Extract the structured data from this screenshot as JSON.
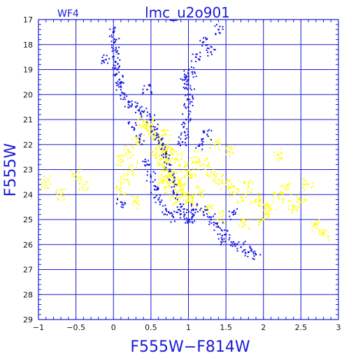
{
  "chart_data": {
    "type": "scatter",
    "title": "lmc_u2o901",
    "subtitle": "WF4",
    "xlabel": "F555W−F814W",
    "ylabel": "F555W",
    "xlim": [
      -1,
      3
    ],
    "ylim": [
      29,
      17
    ],
    "y_inverted": true,
    "grid": true,
    "x_ticks": [
      "−1",
      "−0.5",
      "0",
      "0.5",
      "1",
      "1.5",
      "2",
      "2.5",
      "3"
    ],
    "y_ticks": [
      "17",
      "18",
      "19",
      "20",
      "21",
      "22",
      "23",
      "24",
      "25",
      "26",
      "27",
      "28",
      "29"
    ],
    "colors": {
      "axis": "#1a1ad6",
      "series_blue": "#1010e0",
      "series_yellow": "#ffff00"
    },
    "series": [
      {
        "color": "#ffff00",
        "description_points": [
          [
            0.7,
            22.4
          ],
          [
            0.72,
            22.7
          ],
          [
            0.68,
            22.9
          ],
          [
            0.75,
            23.1
          ],
          [
            0.8,
            23.3
          ],
          [
            0.78,
            22.2
          ],
          [
            0.65,
            22.1
          ],
          [
            0.85,
            23.6
          ],
          [
            0.9,
            23.8
          ],
          [
            0.95,
            24.0
          ],
          [
            1.0,
            24.1
          ],
          [
            1.05,
            24.3
          ],
          [
            0.6,
            21.9
          ],
          [
            0.62,
            22.6
          ],
          [
            0.58,
            22.3
          ],
          [
            0.66,
            23.4
          ],
          [
            0.73,
            23.7
          ],
          [
            0.82,
            24.2
          ],
          [
            0.88,
            23.5
          ],
          [
            0.7,
            21.6
          ],
          [
            0.55,
            21.5
          ],
          [
            0.5,
            21.2
          ],
          [
            0.45,
            21.4
          ],
          [
            0.4,
            21.1
          ],
          [
            0.3,
            21.9
          ],
          [
            0.2,
            22.3
          ],
          [
            0.1,
            22.6
          ],
          [
            0.25,
            23.0
          ],
          [
            0.15,
            23.4
          ],
          [
            1.1,
            22.5
          ],
          [
            1.2,
            22.8
          ],
          [
            1.3,
            23.1
          ],
          [
            1.4,
            23.4
          ],
          [
            1.5,
            23.6
          ],
          [
            1.6,
            23.9
          ],
          [
            1.7,
            24.1
          ],
          [
            1.8,
            23.7
          ],
          [
            1.9,
            24.2
          ],
          [
            2.0,
            24.4
          ],
          [
            2.1,
            24.6
          ],
          [
            2.2,
            24.1
          ],
          [
            2.3,
            23.8
          ],
          [
            2.4,
            24.5
          ],
          [
            2.5,
            24.3
          ],
          [
            2.7,
            25.2
          ],
          [
            2.8,
            25.6
          ],
          [
            1.25,
            24.6
          ],
          [
            1.45,
            24.9
          ],
          [
            1.55,
            22.3
          ],
          [
            1.35,
            22.0
          ],
          [
            1.15,
            23.9
          ],
          [
            0.95,
            22.9
          ],
          [
            1.05,
            23.2
          ],
          [
            0.85,
            22.6
          ],
          [
            -0.4,
            23.6
          ],
          [
            -0.9,
            23.5
          ],
          [
            -0.7,
            24.0
          ],
          [
            -0.5,
            23.2
          ],
          [
            0.3,
            24.3
          ],
          [
            0.1,
            23.9
          ],
          [
            2.2,
            22.4
          ],
          [
            2.6,
            23.6
          ],
          [
            2.0,
            25.0
          ],
          [
            1.75,
            25.2
          ]
        ]
      },
      {
        "color": "#1010e0",
        "description_points": [
          [
            0.0,
            17.5
          ],
          [
            0.02,
            17.9
          ],
          [
            0.04,
            18.3
          ],
          [
            0.03,
            18.7
          ],
          [
            0.05,
            19.0
          ],
          [
            0.08,
            19.4
          ],
          [
            0.1,
            19.7
          ],
          [
            0.15,
            20.0
          ],
          [
            0.2,
            20.3
          ],
          [
            0.3,
            20.5
          ],
          [
            0.4,
            20.7
          ],
          [
            0.5,
            21.0
          ],
          [
            0.55,
            21.4
          ],
          [
            0.6,
            21.7
          ],
          [
            0.65,
            22.0
          ],
          [
            0.7,
            22.5
          ],
          [
            0.75,
            23.0
          ],
          [
            0.8,
            23.5
          ],
          [
            0.85,
            24.0
          ],
          [
            0.9,
            24.5
          ],
          [
            0.95,
            24.8
          ],
          [
            1.0,
            25.0
          ],
          [
            1.05,
            24.9
          ],
          [
            1.1,
            24.6
          ],
          [
            1.2,
            24.7
          ],
          [
            1.3,
            25.0
          ],
          [
            1.4,
            25.3
          ],
          [
            1.5,
            25.6
          ],
          [
            1.6,
            25.9
          ],
          [
            1.7,
            26.1
          ],
          [
            1.8,
            26.3
          ],
          [
            0.8,
            24.9
          ],
          [
            0.7,
            24.6
          ],
          [
            0.6,
            24.2
          ],
          [
            0.55,
            23.8
          ],
          [
            0.5,
            23.3
          ],
          [
            0.45,
            22.8
          ],
          [
            0.95,
            19.2
          ],
          [
            1.0,
            19.4
          ],
          [
            1.05,
            19.1
          ],
          [
            0.98,
            19.6
          ],
          [
            1.02,
            20.0
          ],
          [
            1.0,
            20.5
          ],
          [
            0.97,
            21.0
          ],
          [
            0.95,
            21.5
          ],
          [
            0.92,
            21.9
          ],
          [
            1.1,
            18.5
          ],
          [
            1.2,
            17.9
          ],
          [
            1.3,
            18.3
          ],
          [
            1.4,
            17.4
          ],
          [
            0.25,
            21.3
          ],
          [
            0.35,
            21.8
          ],
          [
            1.15,
            22.0
          ],
          [
            0.1,
            24.3
          ],
          [
            -0.1,
            18.6
          ],
          [
            1.9,
            26.4
          ],
          [
            1.25,
            21.6
          ],
          [
            0.45,
            19.8
          ],
          [
            1.6,
            24.8
          ],
          [
            1.45,
            25.8
          ]
        ]
      }
    ]
  }
}
